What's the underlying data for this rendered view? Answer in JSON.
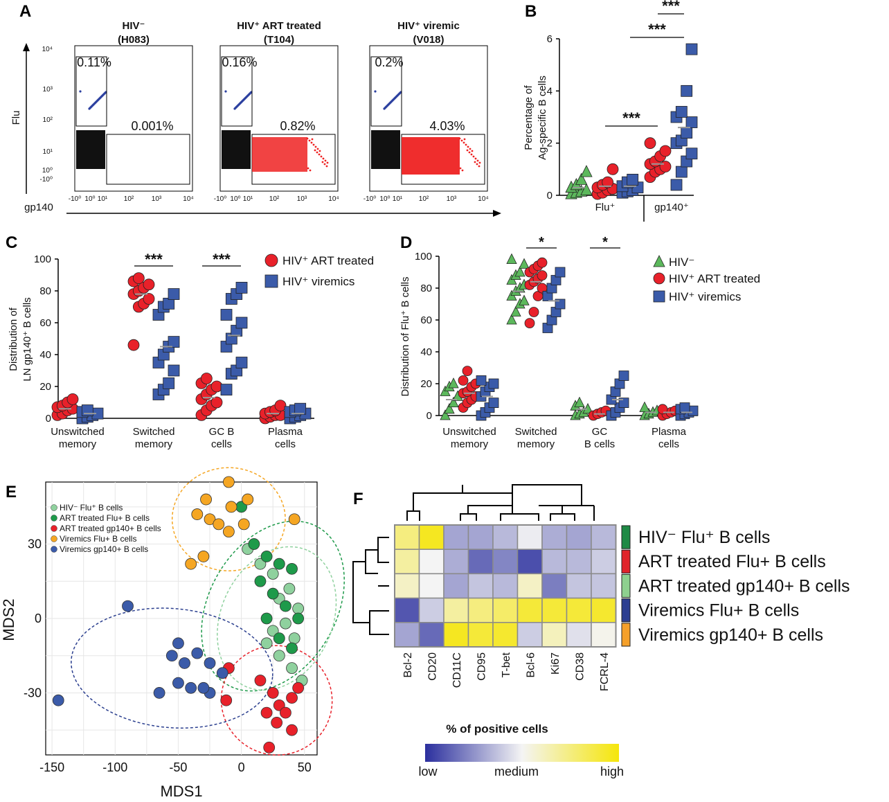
{
  "panel_labels": {
    "A": "A",
    "B": "B",
    "C": "C",
    "D": "D",
    "E": "E",
    "F": "F"
  },
  "colors": {
    "green": "#5cb85c",
    "red": "#e8212a",
    "blue": "#3b5ba9",
    "orange": "#f5a623",
    "light_green": "#8fd19e",
    "dark_green": "#1e9a4a",
    "dark_blue": "#2b3f8f",
    "sig": "#d0222a",
    "heat_low": "#2b2f9e",
    "heat_mid": "#f4f4f4",
    "heat_high": "#f5e60a"
  },
  "chart_data": [
    {
      "id": "A",
      "type": "scatter",
      "description_kind": "flow_cytometry",
      "title_lines": [
        {
          "l1": "HIV⁻",
          "l2": "(H083)"
        },
        {
          "l1": "HIV⁺ ART treated",
          "l2": "(T104)"
        },
        {
          "l1": "HIV⁺ viremic",
          "l2": "(V018)"
        }
      ],
      "ylabel": "Flu",
      "xlabel": "gp140",
      "y_ticks": [
        "10⁴",
        "10³",
        "10²",
        "10¹",
        "10⁰",
        "-10⁰"
      ],
      "x_ticks": [
        "-10⁰",
        "10⁰",
        "10¹",
        "10²",
        "10³",
        "10⁴"
      ],
      "gates": [
        {
          "flu": "0.11%",
          "gp140": "0.001%"
        },
        {
          "flu": "0.16%",
          "gp140": "0.82%"
        },
        {
          "flu": "0.2%",
          "gp140": "4.03%"
        }
      ]
    },
    {
      "id": "B",
      "type": "scatter",
      "ylabel_lines": [
        "Percentage of",
        "Ag-specific B cells"
      ],
      "ylim": [
        0,
        6
      ],
      "yticks": [
        0,
        2,
        4,
        6
      ],
      "groups": [
        "Flu⁺",
        "gp140⁺"
      ],
      "series": [
        {
          "name": "HIV⁻ Flu⁺",
          "group": "Flu⁺",
          "marker": "triangle",
          "color": "green",
          "values": [
            0.05,
            0.1,
            0.15,
            0.2,
            0.3,
            0.4,
            0.6,
            0.9
          ],
          "mean": 0.3
        },
        {
          "name": "HIV⁺ ART treated Flu⁺",
          "group": "Flu⁺",
          "marker": "circle",
          "color": "red",
          "values": [
            0.05,
            0.1,
            0.2,
            0.25,
            0.3,
            0.4,
            0.5,
            1.0
          ],
          "mean": 0.35
        },
        {
          "name": "HIV⁺ viremic Flu⁺",
          "group": "Flu⁺",
          "marker": "square",
          "color": "blue",
          "values": [
            0.1,
            0.15,
            0.2,
            0.3,
            0.35,
            0.5,
            0.6
          ],
          "mean": 0.35
        },
        {
          "name": "HIV⁺ ART treated gp140⁺",
          "group": "gp140⁺",
          "marker": "circle",
          "color": "red",
          "values": [
            0.7,
            0.9,
            1.0,
            1.1,
            1.2,
            1.3,
            1.5,
            1.7,
            2.0
          ],
          "mean": 1.2
        },
        {
          "name": "HIV⁺ viremic gp140⁺",
          "group": "gp140⁺",
          "marker": "square",
          "color": "blue",
          "values": [
            0.4,
            0.9,
            1.3,
            1.6,
            2.0,
            2.1,
            2.4,
            2.8,
            3.0,
            3.2,
            4.0,
            5.6
          ],
          "mean": 2.6
        }
      ],
      "significance": [
        {
          "label": "***",
          "from": 1,
          "to": 3
        },
        {
          "label": "***",
          "from": 3,
          "to": 4
        },
        {
          "label": "***",
          "from": 4,
          "to": 4
        }
      ]
    },
    {
      "id": "C",
      "type": "scatter",
      "ylabel_lines": [
        "Distribution of",
        "LN gp140⁺ B cells"
      ],
      "ylim": [
        0,
        100
      ],
      "yticks": [
        0,
        20,
        40,
        60,
        80,
        100
      ],
      "categories": [
        "Unswitched memory",
        "Switched memory",
        "GC B cells",
        "Plasma cells"
      ],
      "category_lines": [
        [
          "Unswitched",
          "memory"
        ],
        [
          "Switched",
          "memory"
        ],
        [
          "GC B",
          "cells"
        ],
        [
          "Plasma",
          "cells"
        ]
      ],
      "legend": [
        "HIV⁺ ART treated",
        "HIV⁺ viremics"
      ],
      "series": [
        {
          "name": "HIV⁺ ART treated",
          "marker": "circle",
          "color": "red",
          "data": [
            [
              2,
              3,
              5,
              6,
              7,
              8,
              10,
              12
            ],
            [
              46,
              70,
              72,
              75,
              78,
              80,
              82,
              84,
              86,
              88
            ],
            [
              2,
              5,
              8,
              10,
              12,
              15,
              18,
              20,
              22,
              25
            ],
            [
              0,
              1,
              2,
              2,
              3,
              4,
              5,
              8
            ]
          ],
          "means": [
            6,
            78,
            13,
            3
          ]
        },
        {
          "name": "HIV⁺ viremics",
          "marker": "square",
          "color": "blue",
          "data": [
            [
              0,
              1,
              2,
              3,
              4,
              5
            ],
            [
              15,
              18,
              22,
              30,
              35,
              40,
              45,
              48,
              65,
              70,
              72,
              78
            ],
            [
              18,
              28,
              30,
              35,
              45,
              50,
              55,
              60,
              65,
              75,
              78,
              82
            ],
            [
              0,
              1,
              2,
              3,
              4,
              5,
              6
            ]
          ],
          "means": [
            3,
            45,
            52,
            3
          ]
        }
      ],
      "significance": [
        {
          "label": "***",
          "category": 1
        },
        {
          "label": "***",
          "category": 2
        }
      ]
    },
    {
      "id": "D",
      "type": "scatter",
      "ylabel": "Distribution of Flu⁺ B cells",
      "ylim": [
        0,
        100
      ],
      "yticks": [
        0,
        20,
        40,
        60,
        80,
        100
      ],
      "categories": [
        "Unswitched memory",
        "Switched memory",
        "GC B cells",
        "Plasma cells"
      ],
      "category_lines": [
        [
          "Unswitched",
          "memory"
        ],
        [
          "Switched",
          "memory"
        ],
        [
          "GC",
          "B cells"
        ],
        [
          "Plasma",
          "cells"
        ]
      ],
      "legend": [
        "HIV⁻",
        "HIV⁺ ART treated",
        "HIV⁺ viremics"
      ],
      "series": [
        {
          "name": "HIV⁻",
          "marker": "triangle",
          "color": "green",
          "data": [
            [
              0,
              4,
              8,
              12,
              15,
              18,
              20
            ],
            [
              60,
              65,
              70,
              72,
              75,
              78,
              80,
              82,
              85,
              88,
              90,
              95,
              98
            ],
            [
              0,
              1,
              2,
              4,
              6,
              8
            ],
            [
              0,
              1,
              2,
              3,
              5
            ]
          ],
          "means": [
            10,
            78,
            4,
            2
          ]
        },
        {
          "name": "HIV⁺ ART treated",
          "marker": "circle",
          "color": "red",
          "data": [
            [
              5,
              8,
              10,
              12,
              14,
              15,
              18,
              20,
              22,
              28
            ],
            [
              58,
              65,
              75,
              80,
              82,
              84,
              86,
              88,
              90,
              92,
              94,
              96
            ],
            [
              0,
              1,
              2,
              3
            ],
            [
              0,
              1,
              2,
              3,
              4
            ]
          ],
          "means": [
            14,
            84,
            1,
            2
          ]
        },
        {
          "name": "HIV⁺ viremics",
          "marker": "square",
          "color": "blue",
          "data": [
            [
              0,
              2,
              5,
              8,
              12,
              15,
              18,
              20,
              22
            ],
            [
              55,
              60,
              65,
              70,
              75,
              80,
              85,
              90
            ],
            [
              0,
              2,
              5,
              8,
              10,
              15,
              20,
              25
            ],
            [
              0,
              1,
              2,
              3,
              4,
              5
            ]
          ],
          "means": [
            12,
            72,
            10,
            2
          ]
        }
      ],
      "significance": [
        {
          "label": "*",
          "category": 1
        },
        {
          "label": "*",
          "category": 2
        }
      ]
    },
    {
      "id": "E",
      "type": "scatter",
      "xlabel": "MDS1",
      "ylabel": "MDS2",
      "xlim": [
        -155,
        60
      ],
      "ylim": [
        -55,
        55
      ],
      "xticks": [
        -150,
        -100,
        -50,
        0,
        50
      ],
      "yticks": [
        -30,
        0,
        30
      ],
      "legend": [
        "HIV⁻ Flu⁺ B cells",
        "ART treated Flu+ B cells",
        "ART treated gp140+ B cells",
        "Viremics Flu+ B cells",
        "Viremics gp140+ B cells"
      ],
      "series": [
        {
          "name": "HIV⁻ Flu⁺ B cells",
          "color": "light_green",
          "points": [
            [
              5,
              28
            ],
            [
              15,
              22
            ],
            [
              25,
              18
            ],
            [
              38,
              12
            ],
            [
              30,
              8
            ],
            [
              45,
              4
            ],
            [
              35,
              -2
            ],
            [
              42,
              -8
            ],
            [
              20,
              -10
            ],
            [
              30,
              -15
            ],
            [
              40,
              -20
            ],
            [
              48,
              -25
            ],
            [
              25,
              -5
            ]
          ]
        },
        {
          "name": "ART treated Flu+ B cells",
          "color": "dark_green",
          "points": [
            [
              0,
              45
            ],
            [
              10,
              30
            ],
            [
              20,
              25
            ],
            [
              30,
              22
            ],
            [
              40,
              20
            ],
            [
              15,
              15
            ],
            [
              25,
              10
            ],
            [
              35,
              5
            ],
            [
              45,
              0
            ],
            [
              20,
              0
            ],
            [
              30,
              -8
            ],
            [
              40,
              -12
            ]
          ]
        },
        {
          "name": "ART treated gp140+ B cells",
          "color": "red",
          "points": [
            [
              -10,
              -20
            ],
            [
              -12,
              -33
            ],
            [
              15,
              -25
            ],
            [
              25,
              -30
            ],
            [
              30,
              -35
            ],
            [
              35,
              -38
            ],
            [
              40,
              -32
            ],
            [
              45,
              -28
            ],
            [
              20,
              -38
            ],
            [
              28,
              -42
            ],
            [
              40,
              -45
            ],
            [
              22,
              -52
            ]
          ]
        },
        {
          "name": "Viremics Flu+ B cells",
          "color": "orange",
          "points": [
            [
              -10,
              55
            ],
            [
              -28,
              48
            ],
            [
              -8,
              45
            ],
            [
              5,
              48
            ],
            [
              -35,
              42
            ],
            [
              -25,
              40
            ],
            [
              -18,
              38
            ],
            [
              -10,
              35
            ],
            [
              2,
              38
            ],
            [
              42,
              40
            ],
            [
              -30,
              25
            ],
            [
              -40,
              22
            ]
          ]
        },
        {
          "name": "Viremics gp140+ B cells",
          "color": "blue",
          "points": [
            [
              -90,
              5
            ],
            [
              -50,
              -10
            ],
            [
              -55,
              -15
            ],
            [
              -45,
              -18
            ],
            [
              -35,
              -14
            ],
            [
              -25,
              -18
            ],
            [
              -15,
              -22
            ],
            [
              -40,
              -28
            ],
            [
              -25,
              -30
            ],
            [
              -65,
              -30
            ],
            [
              -145,
              -33
            ],
            [
              -50,
              -26
            ],
            [
              -30,
              -28
            ]
          ]
        }
      ],
      "ellipses": [
        {
          "color": "orange",
          "cx": -10,
          "cy": 40,
          "rx": 28,
          "ry": 13,
          "angle": 0
        },
        {
          "color": "dark_green",
          "cx": 25,
          "cy": 5,
          "rx": 45,
          "ry": 16,
          "angle": -60
        },
        {
          "color": "light_green",
          "cx": 28,
          "cy": 0,
          "rx": 37,
          "ry": 14,
          "angle": -65
        },
        {
          "color": "red",
          "cx": 28,
          "cy": -33,
          "rx": 27,
          "ry": 14,
          "angle": -70
        },
        {
          "color": "dark_blue",
          "cx": -55,
          "cy": -20,
          "rx": 50,
          "ry": 15,
          "angle": 5
        }
      ]
    },
    {
      "id": "F",
      "type": "heatmap",
      "rows": [
        "HIV⁻ Flu⁺ B cells",
        "ART treated Flu+ B cells",
        "ART treated gp140+ B cells",
        "Viremics Flu+ B cells",
        "Viremics gp140+ B cells"
      ],
      "row_colors": [
        "#1e8a45",
        "#e0242b",
        "#8ed08f",
        "#2c3e91",
        "#f5a02a"
      ],
      "columns": [
        "Bcl-2",
        "CD20",
        "CD11C",
        "CD95",
        "T-bet",
        "Bcl-6",
        "Ki67",
        "CD38",
        "FCRL-4"
      ],
      "values": [
        [
          0.75,
          0.95,
          0.3,
          0.3,
          0.35,
          0.48,
          0.32,
          0.3,
          0.35
        ],
        [
          0.68,
          0.5,
          0.32,
          0.15,
          0.22,
          0.08,
          0.35,
          0.35,
          0.4
        ],
        [
          0.6,
          0.5,
          0.3,
          0.38,
          0.35,
          0.6,
          0.2,
          0.38,
          0.38
        ],
        [
          0.1,
          0.4,
          0.68,
          0.75,
          0.8,
          0.9,
          0.9,
          0.9,
          0.92
        ],
        [
          0.3,
          0.15,
          0.95,
          0.9,
          0.92,
          0.4,
          0.62,
          0.45,
          0.52
        ]
      ],
      "legend_title": "% of positive cells",
      "scale_labels": [
        "low",
        "medium",
        "high"
      ]
    }
  ]
}
